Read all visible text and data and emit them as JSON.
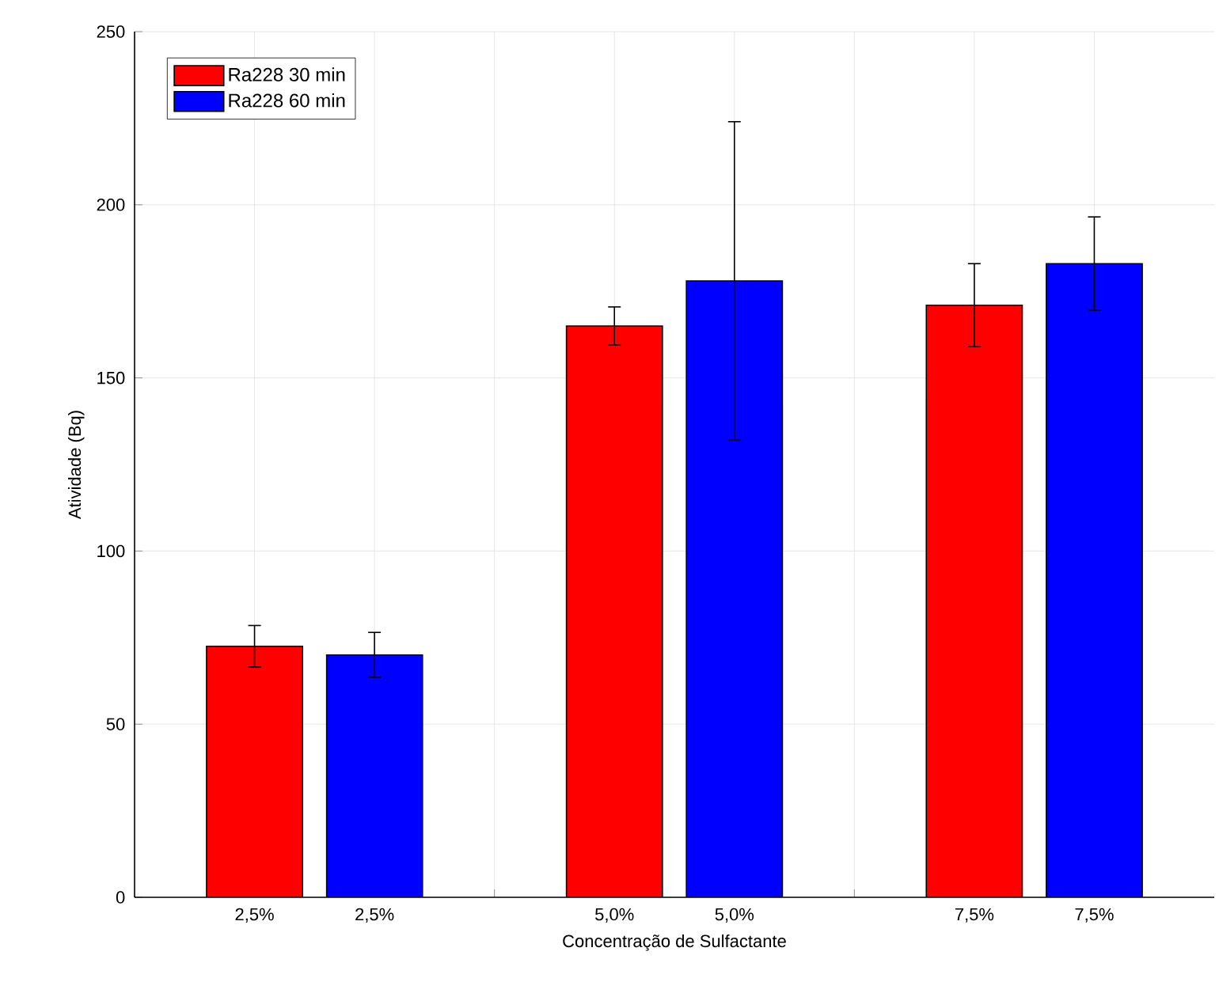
{
  "chart_data": {
    "type": "bar",
    "xlabel": "Concentração de Sulfactante",
    "ylabel": "Atividade (Bq)",
    "categories": [
      "2,5%",
      "2,5%",
      null,
      "5,0%",
      "5,0%",
      null,
      "7,5%",
      "7,5%"
    ],
    "series": [
      {
        "name": "Ra228 30 min",
        "color": "#ff0000",
        "values": [
          72.5,
          null,
          null,
          165,
          null,
          null,
          171,
          null
        ],
        "errors": [
          6,
          null,
          null,
          5.5,
          null,
          null,
          12,
          null
        ]
      },
      {
        "name": "Ra228 60 min",
        "color": "#0000ff",
        "values": [
          null,
          70,
          null,
          null,
          178,
          null,
          null,
          183
        ],
        "errors": [
          null,
          6.5,
          null,
          null,
          46,
          null,
          null,
          13.5
        ]
      }
    ],
    "ylim": [
      0,
      250
    ],
    "yticks": [
      0,
      50,
      100,
      150,
      200,
      250
    ],
    "grid": true,
    "legend": "top left"
  }
}
